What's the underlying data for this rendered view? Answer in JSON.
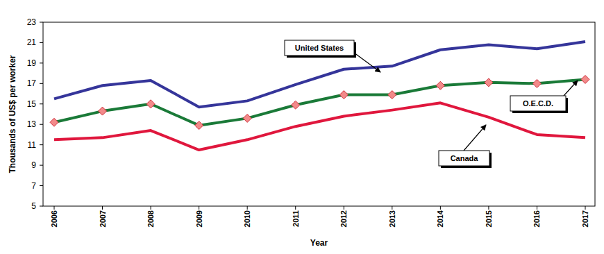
{
  "chart_data": {
    "type": "line",
    "x_label": "Year",
    "y_label": "Thousands of US$ per worker",
    "categories": [
      "2006",
      "2007",
      "2008",
      "2009",
      "2010",
      "2011",
      "2012",
      "2013",
      "2014",
      "2015",
      "2016",
      "2017"
    ],
    "series": [
      {
        "name": "United States",
        "color": "#35359a",
        "line_style": "solid",
        "values": [
          15.5,
          16.8,
          17.3,
          14.7,
          15.3,
          16.9,
          18.4,
          18.7,
          20.3,
          20.8,
          20.4,
          21.1
        ]
      },
      {
        "name": "O.E.C.D.",
        "color": "#1a7a38",
        "line_style": "solid",
        "marker": "diamond",
        "values": [
          13.2,
          14.3,
          15.0,
          12.9,
          13.6,
          14.9,
          15.9,
          15.9,
          16.8,
          17.1,
          17.0,
          17.4
        ]
      },
      {
        "name": "Canada",
        "color": "#e0173d",
        "line_style": "solid",
        "values": [
          11.5,
          11.7,
          12.4,
          10.5,
          11.5,
          12.8,
          13.8,
          14.4,
          15.1,
          13.7,
          12.0,
          11.7
        ]
      }
    ],
    "ylim": [
      5,
      23
    ],
    "yticks": [
      5,
      7,
      9,
      11,
      13,
      15,
      17,
      19,
      21,
      23
    ],
    "grid": false
  }
}
